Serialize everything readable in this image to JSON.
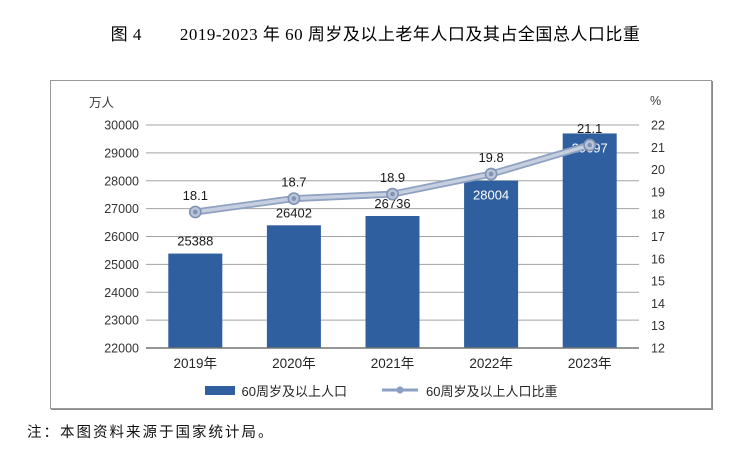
{
  "page": {
    "title_prefix": "图 4",
    "title_main": "2019-2023 年 60 周岁及以上老年人口及其占全国总人口比重",
    "note": "注：本图资料来源于国家统计局。"
  },
  "chart_data": {
    "type": "bar+line combo",
    "categories": [
      "2019年",
      "2020年",
      "2021年",
      "2022年",
      "2023年"
    ],
    "series": [
      {
        "name": "60周岁及以上人口",
        "type": "bar",
        "axis": "left",
        "values": [
          25388,
          26402,
          26736,
          28004,
          29697
        ],
        "color": "#2f5f9e",
        "value_label_inside": [
          false,
          false,
          false,
          true,
          true
        ]
      },
      {
        "name": "60周岁及以上人口比重",
        "type": "line",
        "axis": "right",
        "values": [
          18.1,
          18.7,
          18.9,
          19.8,
          21.1
        ],
        "color_outer": "#8fa2c2",
        "color_inner": "#c6cfe0",
        "marker_fill": "#b9c4d8",
        "marker_stroke": "#8193b5"
      }
    ],
    "left_axis": {
      "unit": "万人",
      "min": 22000,
      "max": 30000,
      "step": 1000,
      "ticks": [
        22000,
        23000,
        24000,
        25000,
        26000,
        27000,
        28000,
        29000,
        30000
      ]
    },
    "right_axis": {
      "unit": "%",
      "min": 12,
      "max": 22,
      "step": 1,
      "ticks": [
        12,
        13,
        14,
        15,
        16,
        17,
        18,
        19,
        20,
        21,
        22
      ]
    },
    "legend": [
      {
        "label": "60周岁及以上人口",
        "marker": "bar-swatch"
      },
      {
        "label": "60周岁及以上人口比重",
        "marker": "line-dot"
      }
    ],
    "grid": "horizontal gridlines on, left-axis intervals",
    "legend_position": "bottom-center inside plot frame",
    "colors": {
      "bar": "#2f5f9e",
      "gridline": "#a3a3a3",
      "axis_line": "#737373",
      "label_dark": "#1a1a1a",
      "label_light": "#ffffff"
    }
  }
}
